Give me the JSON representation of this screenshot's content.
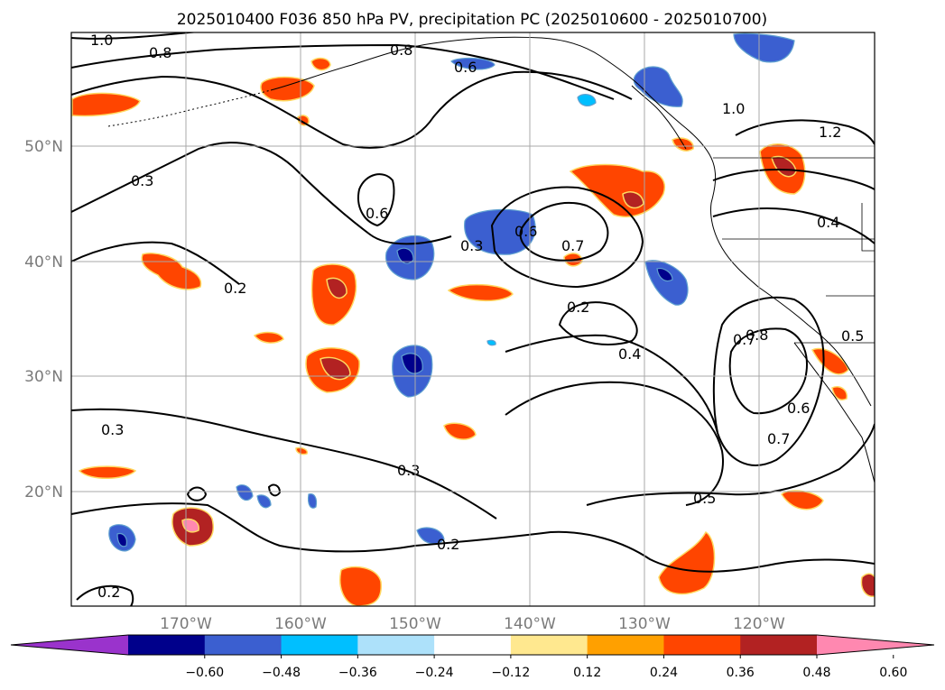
{
  "title": "2025010400 F036 850 hPa PV, precipitation PC (2025010600 - 2025010700)",
  "map": {
    "lat_labels": [
      "50°N",
      "40°N",
      "30°N",
      "20°N"
    ],
    "lon_labels": [
      "170°W",
      "160°W",
      "150°W",
      "140°W",
      "130°W",
      "120°W"
    ],
    "extent": {
      "lon": [
        -180,
        -110
      ],
      "lat": [
        10,
        60
      ]
    },
    "grid": true
  },
  "contour_labels": [
    "1.0",
    "0.8",
    "0.8",
    "0.6",
    "1.0",
    "1.2",
    "0.3",
    "0.6",
    "0.6",
    "0.3",
    "0.7",
    "0.4",
    "0.2",
    "0.2",
    "0.4",
    "0.7",
    "0.8",
    "0.5",
    "0.3",
    "0.6",
    "0.7",
    "0.3",
    "0.5",
    "0.2",
    "0.2"
  ],
  "colorbar": {
    "ticks": [
      "−0.60",
      "−0.48",
      "−0.36",
      "−0.24",
      "−0.12",
      "0.12",
      "0.24",
      "0.36",
      "0.48",
      "0.60"
    ],
    "colors": [
      "#9a33cc",
      "#00008b",
      "#3b5fd0",
      "#00bfff",
      "#ade1fa",
      "#ffffff",
      "#ffe88f",
      "#ffa000",
      "#ff4500",
      "#b22222",
      "#ff88b0"
    ]
  }
}
